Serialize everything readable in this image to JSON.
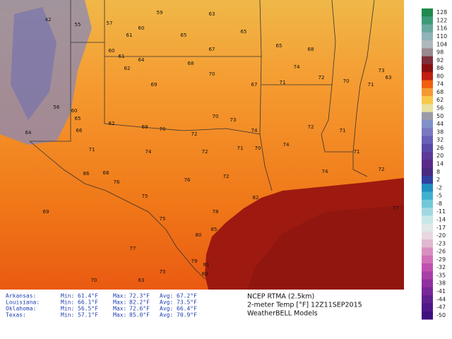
{
  "title": {
    "lines": [
      "NCEP RTMA (2.5km)",
      "2-meter Temp [°F] 12Z11SEP2015",
      "WeatherBELL Models"
    ]
  },
  "stats_table": {
    "rows": [
      [
        "Arkansas:",
        "Min:",
        "61.4°F",
        "Max:",
        "72.3°F",
        "Avg:",
        "67.2°F"
      ],
      [
        "Louisiana:",
        "Min:",
        "66.1°F",
        "Max:",
        "82.2°F",
        "Avg:",
        "73.5°F"
      ],
      [
        "Oklahoma:",
        "Min:",
        "56.5°F",
        "Max:",
        "72.6°F",
        "Avg:",
        "66.4°F"
      ],
      [
        "Texas:",
        "Min:",
        "57.1°F",
        "Max:",
        "85.0°F",
        "Avg:",
        "70.9°F"
      ]
    ]
  },
  "colorbar": {
    "labels": [
      128,
      122,
      116,
      110,
      104,
      98,
      92,
      86,
      80,
      74,
      68,
      62,
      56,
      50,
      44,
      38,
      32,
      26,
      20,
      14,
      8,
      2,
      -2,
      -5,
      -8,
      -11,
      -14,
      -17,
      -20,
      -23,
      -26,
      -29,
      -32,
      -35,
      -38,
      -41,
      -44,
      -47,
      -50
    ],
    "colors": [
      "#1f8a4c",
      "#3d9a78",
      "#6aa9a0",
      "#8fb3b6",
      "#b0b8bd",
      "#9a8a8f",
      "#7d2f3a",
      "#8a1010",
      "#c02010",
      "#f06010",
      "#f59a30",
      "#f8c84a",
      "#e8e0a0",
      "#9a9aa8",
      "#8090c8",
      "#7a78c0",
      "#6860b8",
      "#5a4aa8",
      "#5c3a98",
      "#5a2a8a",
      "#4a2a80",
      "#3040a0",
      "#2090c0",
      "#40b0d0",
      "#70c8d8",
      "#a0d8e0",
      "#c8e8e8",
      "#e0e8e8",
      "#e8d8e0",
      "#e0b8d0",
      "#d890c0",
      "#d070b8",
      "#c050b0",
      "#a840a8",
      "#9030a0",
      "#782898",
      "#602090",
      "#501888",
      "#401080"
    ]
  },
  "stations": [
    42,
    55,
    57,
    59,
    61,
    60,
    63,
    65,
    65,
    67,
    65,
    68,
    60,
    61,
    64,
    62,
    69,
    68,
    70,
    67,
    71,
    74,
    72,
    70,
    71,
    63,
    73,
    56,
    60,
    65,
    66,
    62,
    69,
    70,
    72,
    70,
    73,
    74,
    72,
    71,
    74,
    71,
    72,
    71,
    70,
    74,
    71,
    86,
    68,
    76,
    75,
    76,
    72,
    74,
    72,
    69,
    75,
    78,
    82,
    85,
    80,
    77,
    79,
    81,
    80,
    75,
    70,
    63,
    64,
    77
  ]
}
